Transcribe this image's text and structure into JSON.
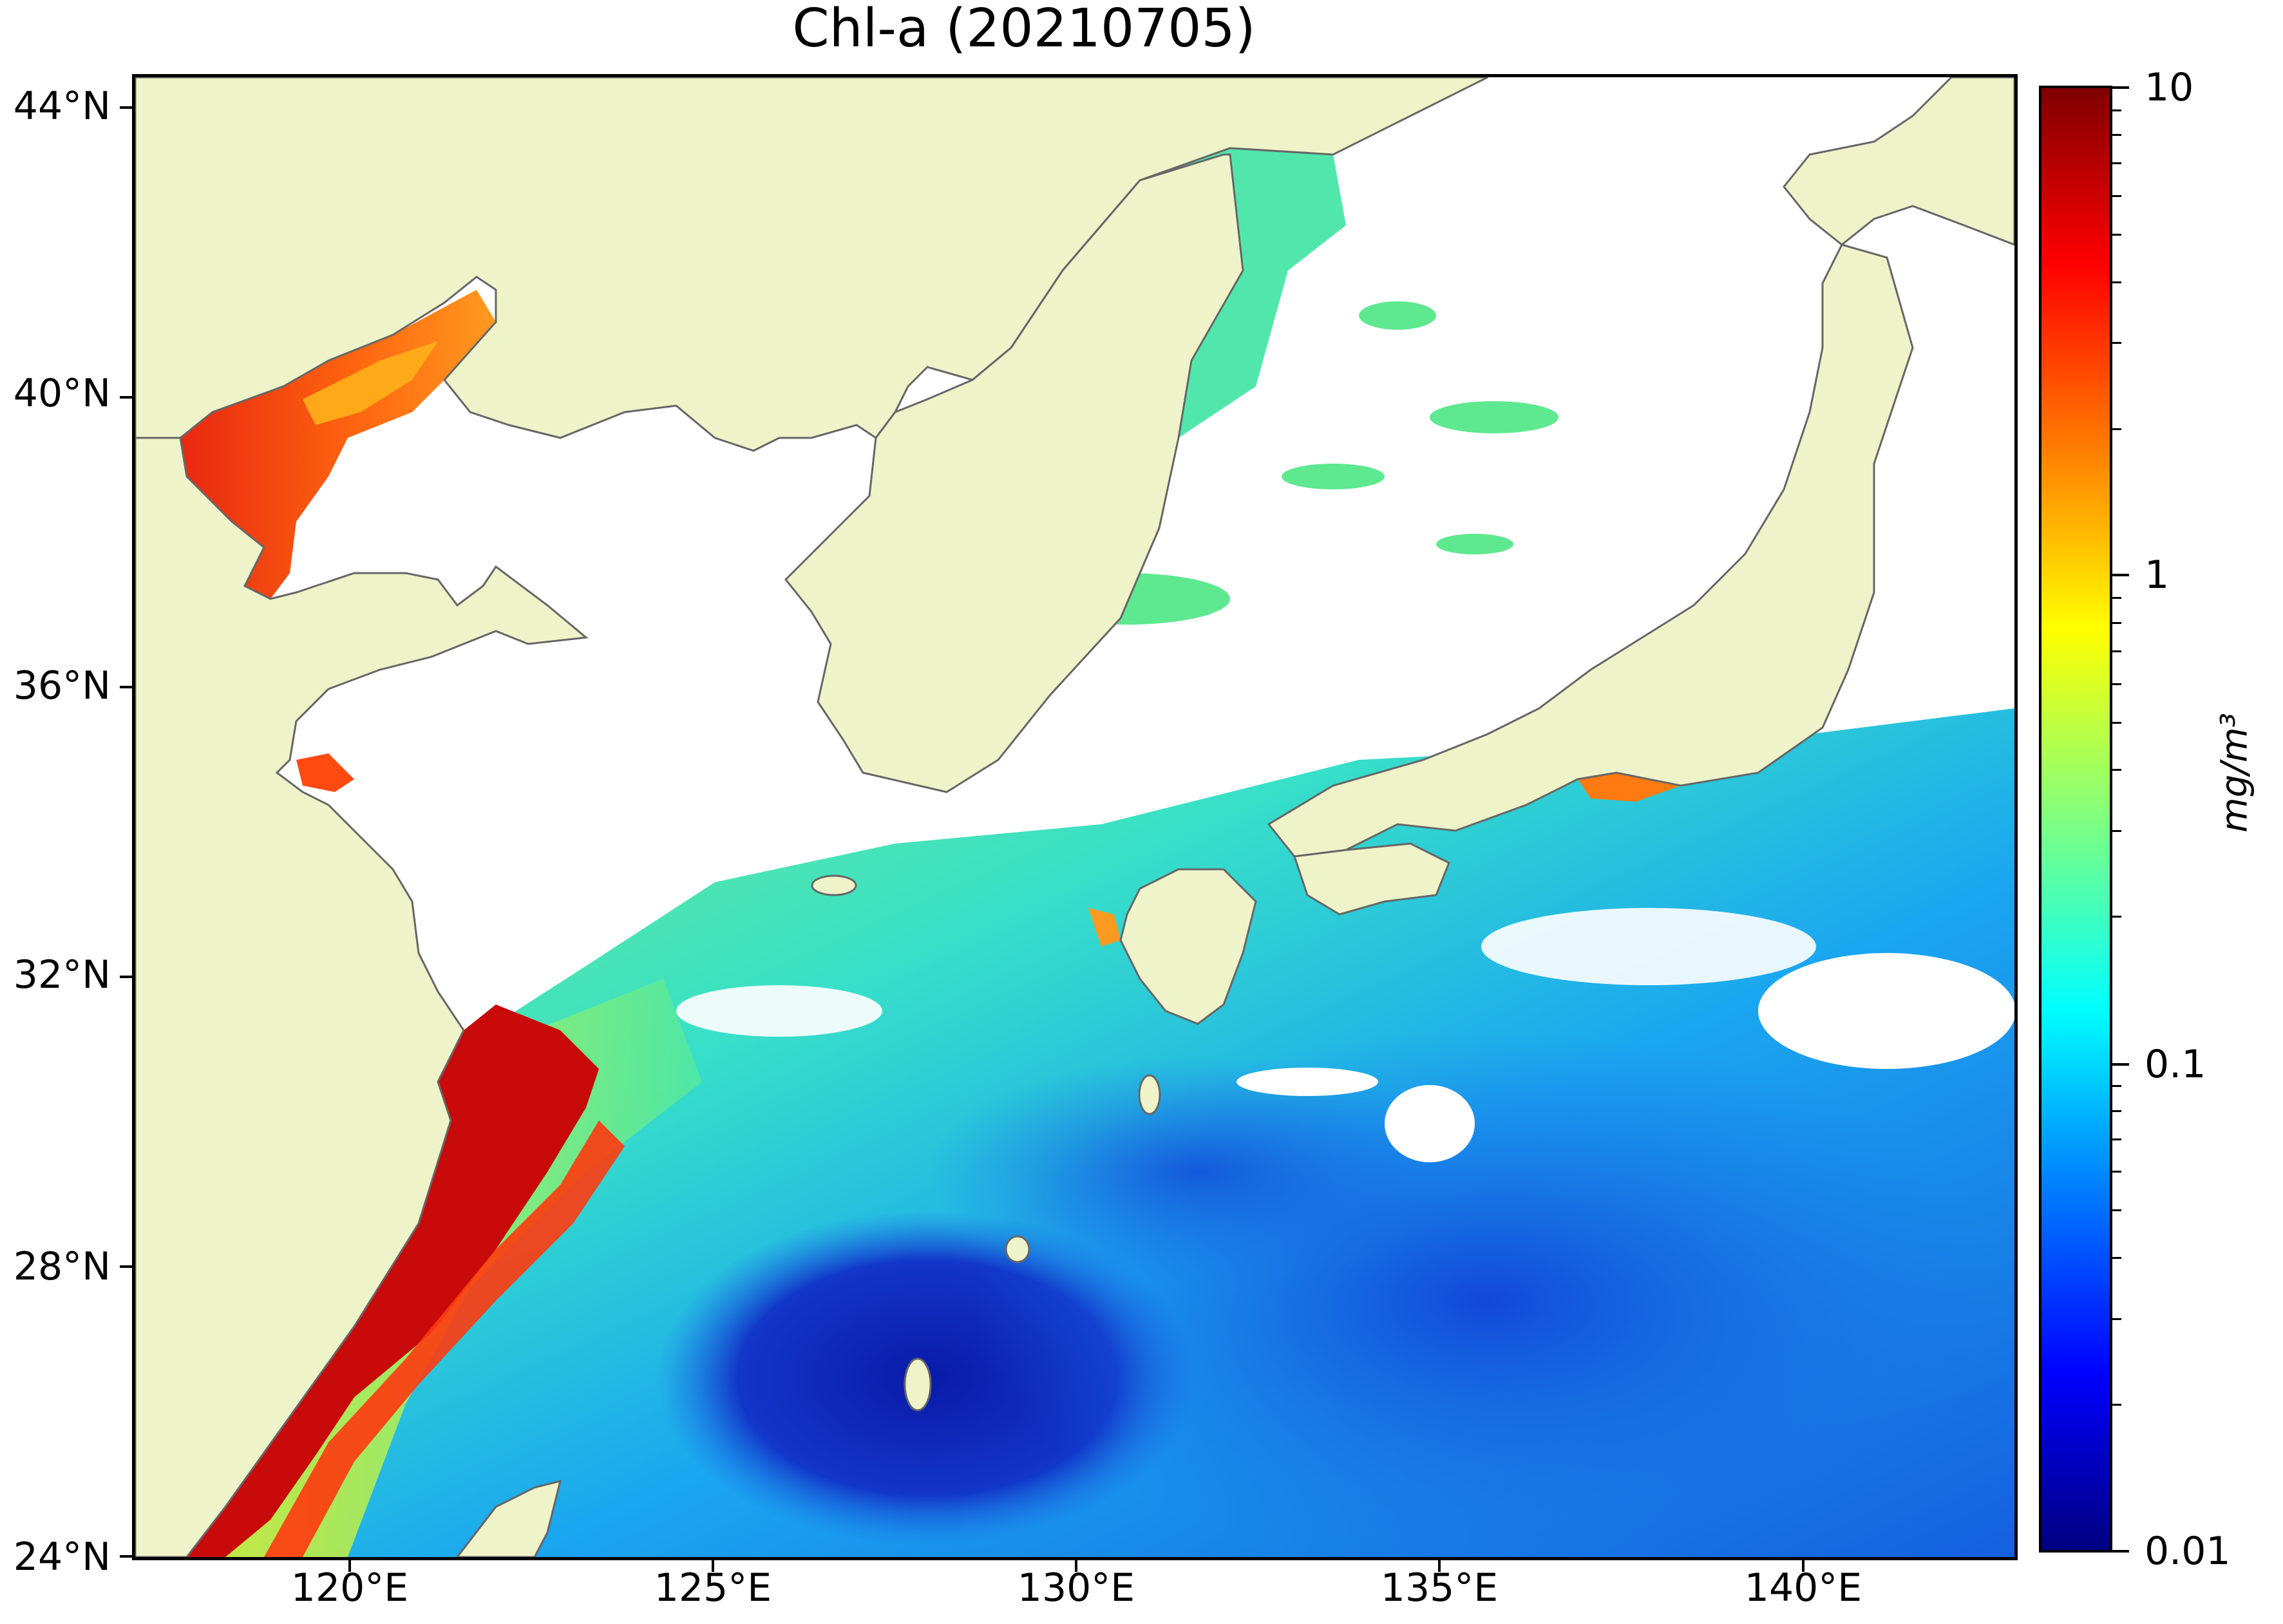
{
  "title": "Chl-a (20210705)",
  "axes": {
    "lat_labels": [
      "44°N",
      "40°N",
      "36°N",
      "32°N",
      "28°N",
      "24°N"
    ],
    "lon_labels": [
      "120°E",
      "125°E",
      "130°E",
      "135°E",
      "140°E"
    ],
    "lon_range": [
      117,
      143
    ],
    "lat_range": [
      24,
      44.5
    ]
  },
  "colorbar": {
    "ticks": [
      "10",
      "1",
      "0.1",
      "0.01"
    ],
    "unit_label": "mg/m³",
    "scale": "log",
    "range": [
      0.01,
      10
    ],
    "colormap": "jet"
  },
  "colors": {
    "land": "#eff3c9",
    "no_data": "#ffffff",
    "coastline": "#666666"
  },
  "chart_data": {
    "type": "heatmap",
    "title": "Chl-a (20210705)",
    "variable": "Chl-a",
    "units": "mg/m³",
    "color_scale": "log",
    "vmin": 0.01,
    "vmax": 10,
    "xlabel": "",
    "ylabel": "",
    "xlim": [
      117,
      143
    ],
    "ylim": [
      24,
      44.5
    ],
    "x_ticks": [
      "120°E",
      "125°E",
      "130°E",
      "135°E",
      "140°E"
    ],
    "y_ticks": [
      "44°N",
      "40°N",
      "36°N",
      "32°N",
      "28°N",
      "24°N"
    ]
  }
}
